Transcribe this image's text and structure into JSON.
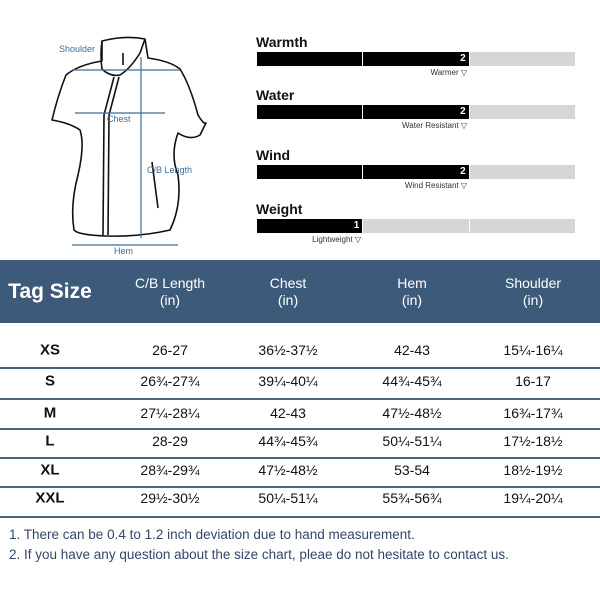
{
  "diagram": {
    "labels": {
      "shoulder": "Shoulder",
      "chest": "Chest",
      "length": "C/B Length",
      "hem": "Hem"
    }
  },
  "ratings": [
    {
      "title": "Warmth",
      "value": 2,
      "max": 3,
      "value_label": "2",
      "caption": "Warmer ▽"
    },
    {
      "title": "Water",
      "value": 2,
      "max": 3,
      "value_label": "2",
      "caption": "Water Resistant ▽"
    },
    {
      "title": "Wind",
      "value": 2,
      "max": 3,
      "value_label": "2",
      "caption": "Wind Resistant ▽"
    },
    {
      "title": "Weight",
      "value": 1,
      "max": 3,
      "value_label": "1",
      "caption": "Lightweight ▽"
    }
  ],
  "table": {
    "header_color": "#3d5a7a",
    "headers": [
      {
        "line1": "Tag Size",
        "line2": ""
      },
      {
        "line1": "C/B Length",
        "line2": "(in)"
      },
      {
        "line1": "Chest",
        "line2": "(in)"
      },
      {
        "line1": "Hem",
        "line2": "(in)"
      },
      {
        "line1": "Shoulder",
        "line2": "(in)"
      }
    ],
    "rows": [
      [
        "XS",
        "26-27",
        "36½-37½",
        "42-43",
        "15¼-16¼"
      ],
      [
        "S",
        "26¾-27¾",
        "39¼-40¼",
        "44¾-45¾",
        "16-17"
      ],
      [
        "M",
        "27¼-28¼",
        "42-43",
        "47½-48½",
        "16¾-17¾"
      ],
      [
        "L",
        "28-29",
        "44¾-45¾",
        "50¼-51¼",
        "17½-18½"
      ],
      [
        "XL",
        "28¾-29¾",
        "47½-48½",
        "53-54",
        "18½-19½"
      ],
      [
        "XXL",
        "29½-30½",
        "50¼-51¼",
        "55¾-56¾",
        "19¼-20¼"
      ]
    ]
  },
  "notes": [
    "1. There can be 0.4 to 1.2 inch deviation due to hand measurement.",
    "2. If you have any question about the size chart, pleae do not hesitate to contact us."
  ]
}
